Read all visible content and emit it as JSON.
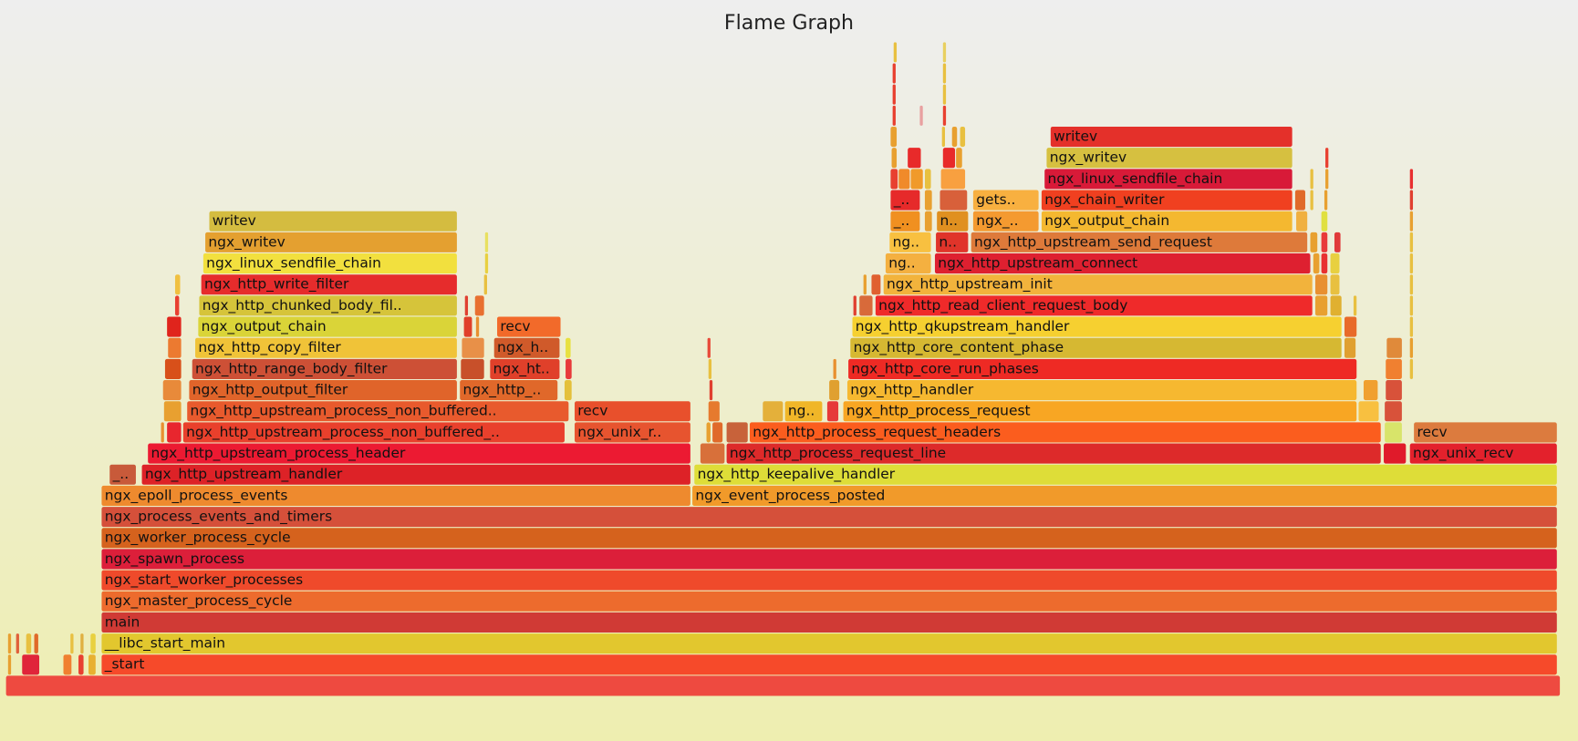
{
  "chart_data": {
    "type": "flamegraph",
    "title": "Flame Graph",
    "total_samples": 1545,
    "frames": [
      [
        0,
        0,
        1545,
        "",
        "#ee4a40"
      ],
      [
        1,
        95,
        1542,
        "_start",
        "#f64a2a"
      ],
      [
        1,
        2,
        6,
        "",
        "#e8a030"
      ],
      [
        1,
        16,
        34,
        "",
        "#e0253a"
      ],
      [
        1,
        57,
        66,
        "",
        "#f08030"
      ],
      [
        1,
        72,
        78,
        "",
        "#e84030"
      ],
      [
        1,
        82,
        90,
        "",
        "#e8b030"
      ],
      [
        2,
        95,
        1542,
        "__libc_start_main",
        "#e2c72e"
      ],
      [
        2,
        2,
        5,
        "",
        "#e8a030"
      ],
      [
        2,
        10,
        14,
        "",
        "#e0603a"
      ],
      [
        2,
        20,
        26,
        "",
        "#e8c040"
      ],
      [
        2,
        28,
        33,
        "",
        "#e06a2a"
      ],
      [
        2,
        64,
        68,
        "",
        "#e8c040"
      ],
      [
        2,
        74,
        78,
        "",
        "#e0b040"
      ],
      [
        2,
        84,
        90,
        "",
        "#e8d040"
      ],
      [
        3,
        95,
        1542,
        "main",
        "#d03a35"
      ],
      [
        4,
        95,
        1542,
        "ngx_master_process_cycle",
        "#ed6b2d"
      ],
      [
        5,
        95,
        1542,
        "ngx_start_worker_processes",
        "#ef4a2b"
      ],
      [
        6,
        95,
        1542,
        "ngx_spawn_process",
        "#dc1f3a"
      ],
      [
        7,
        95,
        1542,
        "ngx_worker_process_cycle",
        "#d5621d"
      ],
      [
        8,
        95,
        1542,
        "ngx_process_events_and_timers",
        "#d5503a"
      ],
      [
        9,
        95,
        681,
        "ngx_epoll_process_events",
        "#ee8a2e"
      ],
      [
        9,
        682,
        1542,
        "ngx_event_process_posted",
        "#f19a2a"
      ],
      [
        10,
        103,
        130,
        "_..",
        "#c85a3a"
      ],
      [
        10,
        135,
        681,
        "ngx_http_upstream_handler",
        "#dd2227"
      ],
      [
        10,
        684,
        1542,
        "ngx_http_keepalive_handler",
        "#dedd38"
      ],
      [
        11,
        141,
        681,
        "ngx_http_upstream_process_header",
        "#ec1a32"
      ],
      [
        11,
        690,
        715,
        "",
        "#d8703a"
      ],
      [
        11,
        716,
        1367,
        "ngx_http_process_request_line",
        "#dd2a2a"
      ],
      [
        11,
        1369,
        1392,
        "",
        "#e01a2a"
      ],
      [
        11,
        1395,
        1542,
        "ngx_unix_recv",
        "#e3212c"
      ],
      [
        12,
        154,
        158,
        "",
        "#e89030"
      ],
      [
        12,
        160,
        175,
        "",
        "#e8262e"
      ],
      [
        12,
        176,
        556,
        "ngx_http_upstream_process_non_buffered_..",
        "#e9402c"
      ],
      [
        12,
        565,
        681,
        "ngx_unix_r..",
        "#e7542f"
      ],
      [
        12,
        696,
        701,
        "",
        "#e8a030"
      ],
      [
        12,
        702,
        713,
        "",
        "#e06a2a"
      ],
      [
        12,
        716,
        738,
        "",
        "#c8623a"
      ],
      [
        12,
        739,
        1367,
        "ngx_http_process_request_headers",
        "#fb5d1e"
      ],
      [
        12,
        1370,
        1388,
        "",
        "#d8e46a"
      ],
      [
        12,
        1399,
        1542,
        "recv",
        "#dc7b3e"
      ],
      [
        13,
        157,
        175,
        "",
        "#e8a030"
      ],
      [
        13,
        180,
        560,
        "ngx_http_upstream_process_non_buffered..",
        "#e85a2d"
      ],
      [
        13,
        565,
        681,
        "recv",
        "#e8502c"
      ],
      [
        13,
        698,
        710,
        "",
        "#e67a2e"
      ],
      [
        13,
        752,
        773,
        "",
        "#e4b03a"
      ],
      [
        13,
        774,
        812,
        "ng..",
        "#f0b628"
      ],
      [
        13,
        816,
        828,
        "",
        "#e63a3a"
      ],
      [
        13,
        832,
        1343,
        "ngx_http_process_request",
        "#f8a623"
      ],
      [
        13,
        1344,
        1365,
        "",
        "#f8c040"
      ],
      [
        13,
        1370,
        1388,
        "",
        "#d8523a"
      ],
      [
        14,
        156,
        175,
        "",
        "#e88a3a"
      ],
      [
        14,
        182,
        449,
        "ngx_http_output_filter",
        "#e0642a"
      ],
      [
        14,
        451,
        549,
        "ngx_http_..",
        "#e0682a"
      ],
      [
        14,
        555,
        563,
        "",
        "#e4c03a"
      ],
      [
        14,
        699,
        701,
        "",
        "#e04030"
      ],
      [
        14,
        818,
        829,
        "",
        "#e0a030"
      ],
      [
        14,
        836,
        1343,
        "ngx_http_handler",
        "#f6b830"
      ],
      [
        14,
        1349,
        1364,
        "",
        "#f0a030"
      ],
      [
        14,
        1371,
        1388,
        "",
        "#d8523a"
      ],
      [
        15,
        158,
        175,
        "",
        "#d8501a"
      ],
      [
        15,
        185,
        449,
        "ngx_http_range_body_filter",
        "#cd5036"
      ],
      [
        15,
        452,
        476,
        "",
        "#c8502a"
      ],
      [
        15,
        481,
        551,
        "ngx_ht..",
        "#e0402a"
      ],
      [
        15,
        556,
        563,
        "",
        "#e83a3a"
      ],
      [
        15,
        698,
        700,
        "",
        "#e8c040"
      ],
      [
        15,
        822,
        825,
        "",
        "#e89030"
      ],
      [
        15,
        837,
        1343,
        "ngx_http_core_run_phases",
        "#ee2a24"
      ],
      [
        15,
        1371,
        1388,
        "",
        "#f08030"
      ],
      [
        15,
        1395,
        1399,
        "",
        "#e8c040"
      ],
      [
        16,
        161,
        175,
        "",
        "#ec7a30"
      ],
      [
        16,
        188,
        449,
        "ngx_http_copy_filter",
        "#f0c338"
      ],
      [
        16,
        453,
        476,
        "",
        "#e89048"
      ],
      [
        16,
        485,
        551,
        "ngx_h..",
        "#d05a2a"
      ],
      [
        16,
        556,
        562,
        "",
        "#e8e040"
      ],
      [
        16,
        697,
        700,
        "",
        "#e84a3a"
      ],
      [
        16,
        839,
        1328,
        "ngx_http_core_content_phase",
        "#d6b832"
      ],
      [
        16,
        1330,
        1342,
        "",
        "#e0a030"
      ],
      [
        16,
        1372,
        1388,
        "",
        "#e08a3a"
      ],
      [
        16,
        1395,
        1399,
        "",
        "#e8a030"
      ],
      [
        17,
        160,
        175,
        "",
        "#e0241c"
      ],
      [
        17,
        191,
        449,
        "ngx_output_chain",
        "#dad438"
      ],
      [
        17,
        455,
        464,
        "",
        "#e0402a"
      ],
      [
        17,
        467,
        470,
        "",
        "#e89030"
      ],
      [
        17,
        488,
        552,
        "recv",
        "#f26a2a"
      ],
      [
        17,
        841,
        1328,
        "ngx_http_qkupstream_handler",
        "#f6d030"
      ],
      [
        17,
        1330,
        1343,
        "",
        "#e86a2a"
      ],
      [
        17,
        1395,
        1399,
        "",
        "#e8c040"
      ],
      [
        18,
        168,
        173,
        "",
        "#e84030"
      ],
      [
        18,
        192,
        449,
        "ngx_http_chunked_body_fil..",
        "#d6c43a"
      ],
      [
        18,
        456,
        460,
        "",
        "#e04030"
      ],
      [
        18,
        466,
        476,
        "",
        "#e87030"
      ],
      [
        18,
        842,
        846,
        "",
        "#e04030"
      ],
      [
        18,
        848,
        862,
        "",
        "#d86a3a"
      ],
      [
        18,
        864,
        1299,
        "ngx_http_read_client_request_body",
        "#ef2a2a"
      ],
      [
        18,
        1301,
        1314,
        "",
        "#e8a030"
      ],
      [
        18,
        1316,
        1328,
        "",
        "#e0b030"
      ],
      [
        18,
        1339,
        1343,
        "",
        "#e8c040"
      ],
      [
        18,
        1395,
        1399,
        "",
        "#e8c040"
      ],
      [
        19,
        168,
        174,
        "",
        "#f0c040"
      ],
      [
        19,
        194,
        449,
        "ngx_http_write_filter",
        "#e62c2c"
      ],
      [
        19,
        475,
        478,
        "",
        "#e8c040"
      ],
      [
        19,
        852,
        856,
        "",
        "#e8a030"
      ],
      [
        19,
        860,
        870,
        "",
        "#e06030"
      ],
      [
        19,
        872,
        1299,
        "ngx_http_upstream_init",
        "#f2b33c"
      ],
      [
        19,
        1301,
        1314,
        "",
        "#e89030"
      ],
      [
        19,
        1316,
        1326,
        "",
        "#e8c040"
      ],
      [
        19,
        1395,
        1399,
        "",
        "#e8c040"
      ],
      [
        20,
        196,
        449,
        "ngx_linux_sendfile_chain",
        "#f2e03e"
      ],
      [
        20,
        476,
        479,
        "",
        "#e8d040"
      ],
      [
        20,
        874,
        920,
        "ng..",
        "#f4b040"
      ],
      [
        20,
        923,
        1297,
        "ngx_http_upstream_connect",
        "#de2030"
      ],
      [
        20,
        1299,
        1306,
        "",
        "#e8a030"
      ],
      [
        20,
        1307,
        1314,
        "",
        "#e83030"
      ],
      [
        20,
        1316,
        1326,
        "",
        "#e8d040"
      ],
      [
        20,
        1395,
        1399,
        "",
        "#e8c040"
      ],
      [
        21,
        198,
        449,
        "ngx_writev",
        "#e4a030"
      ],
      [
        21,
        476,
        479,
        "",
        "#e8e060"
      ],
      [
        21,
        878,
        920,
        "ng..",
        "#f8c040"
      ],
      [
        21,
        924,
        957,
        "n..",
        "#e0342a"
      ],
      [
        21,
        959,
        1294,
        "ngx_http_upstream_send_request",
        "#de7a3a"
      ],
      [
        21,
        1296,
        1304,
        "",
        "#e8a030"
      ],
      [
        21,
        1307,
        1314,
        "",
        "#e83a3a"
      ],
      [
        21,
        1320,
        1327,
        "",
        "#e03a3a"
      ],
      [
        21,
        1395,
        1399,
        "",
        "#e8c040"
      ],
      [
        22,
        202,
        449,
        "writev",
        "#d4bc40"
      ],
      [
        22,
        879,
        909,
        "_..",
        "#f09020"
      ],
      [
        22,
        913,
        921,
        "",
        "#e8a030"
      ],
      [
        22,
        925,
        957,
        "n..",
        "#e09020"
      ],
      [
        22,
        961,
        1027,
        "ngx_..",
        "#f49a30"
      ],
      [
        22,
        1029,
        1279,
        "ngx_output_chain",
        "#f4b830"
      ],
      [
        22,
        1282,
        1294,
        "",
        "#f0b040"
      ],
      [
        22,
        1307,
        1314,
        "",
        "#e0e040"
      ],
      [
        22,
        1395,
        1399,
        "",
        "#e8a030"
      ],
      [
        23,
        879,
        909,
        "_..",
        "#e62a2a"
      ],
      [
        23,
        913,
        921,
        "",
        "#e8a030"
      ],
      [
        23,
        928,
        956,
        "",
        "#d8603a"
      ],
      [
        23,
        961,
        1027,
        "gets..",
        "#f8b040"
      ],
      [
        23,
        1029,
        1279,
        "ngx_chain_writer",
        "#f04020"
      ],
      [
        23,
        1281,
        1292,
        "",
        "#e06a2a"
      ],
      [
        23,
        1296,
        1300,
        "",
        "#e8c040"
      ],
      [
        23,
        1310,
        1314,
        "",
        "#e8a030"
      ],
      [
        23,
        1395,
        1399,
        "",
        "#e04030"
      ],
      [
        24,
        879,
        887,
        "",
        "#e84030"
      ],
      [
        24,
        887,
        899,
        "",
        "#f08a2a"
      ],
      [
        24,
        899,
        912,
        "",
        "#f09a2a"
      ],
      [
        24,
        913,
        920,
        "",
        "#e8c040"
      ],
      [
        24,
        929,
        954,
        "",
        "#f8a040"
      ],
      [
        24,
        1032,
        1279,
        "ngx_linux_sendfile_chain",
        "#d81a38"
      ],
      [
        24,
        1296,
        1300,
        "",
        "#e8c040"
      ],
      [
        24,
        1311,
        1314,
        "",
        "#e8a030"
      ],
      [
        24,
        1395,
        1399,
        "",
        "#e83030"
      ],
      [
        25,
        880,
        886,
        "",
        "#e8a030"
      ],
      [
        25,
        896,
        910,
        "",
        "#e82a2a"
      ],
      [
        25,
        931,
        944,
        "",
        "#e82a2a"
      ],
      [
        25,
        944,
        951,
        "",
        "#e8a030"
      ],
      [
        25,
        1034,
        1279,
        "ngx_writev",
        "#d6c040"
      ],
      [
        25,
        1311,
        1314,
        "",
        "#e84030"
      ],
      [
        26,
        879,
        886,
        "",
        "#e8a030"
      ],
      [
        26,
        930,
        934,
        "",
        "#e8c040"
      ],
      [
        26,
        940,
        946,
        "",
        "#e8a030"
      ],
      [
        26,
        948,
        954,
        "",
        "#e8c040"
      ],
      [
        26,
        1038,
        1279,
        "writev",
        "#e4302a"
      ],
      [
        27,
        881,
        884,
        "",
        "#e84030"
      ],
      [
        27,
        908,
        911,
        "",
        "#e8a0a0"
      ],
      [
        27,
        931,
        934,
        "",
        "#e84030"
      ],
      [
        28,
        881,
        884,
        "",
        "#e84030"
      ],
      [
        28,
        931,
        934,
        "",
        "#e8c040"
      ],
      [
        29,
        881,
        884,
        "",
        "#e84030"
      ],
      [
        29,
        931,
        934,
        "",
        "#e8c040"
      ],
      [
        30,
        882,
        885,
        "",
        "#e8c040"
      ],
      [
        30,
        931,
        933,
        "",
        "#e8d060"
      ]
    ]
  }
}
